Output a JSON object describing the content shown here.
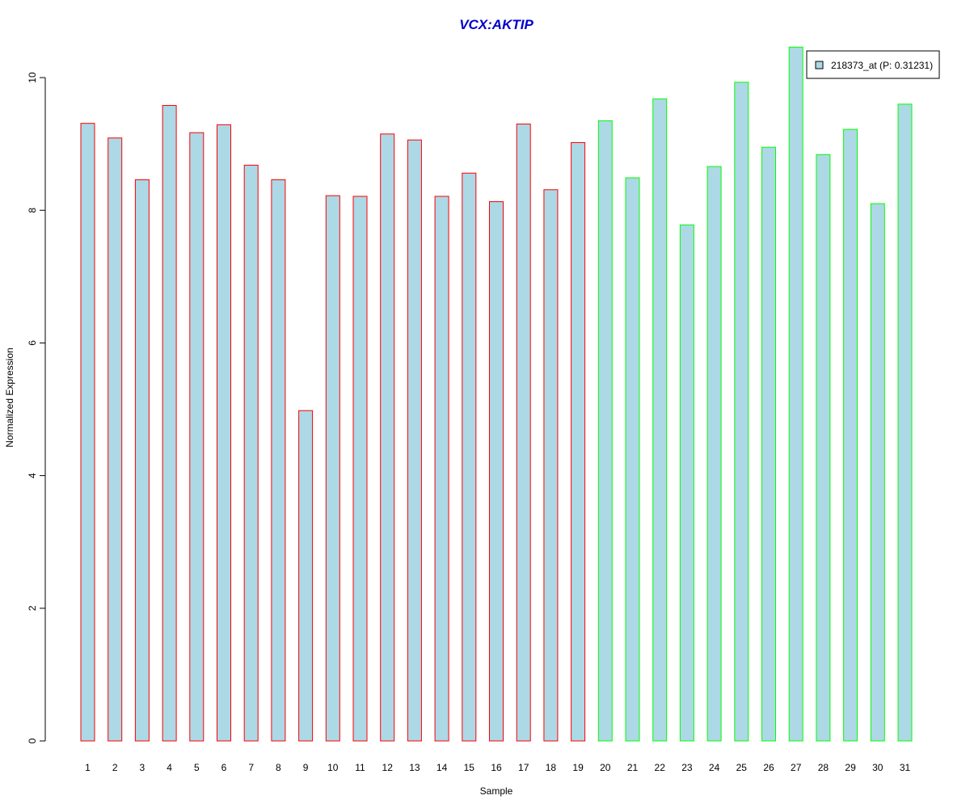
{
  "chart_data": {
    "type": "bar",
    "title": "VCX:AKTIP",
    "xlabel": "Sample",
    "ylabel": "Normalized Expression",
    "ylim": [
      0,
      10.5
    ],
    "yticks": [
      0,
      2,
      4,
      6,
      8,
      10
    ],
    "categories": [
      "1",
      "2",
      "3",
      "4",
      "5",
      "6",
      "7",
      "8",
      "9",
      "10",
      "11",
      "12",
      "13",
      "14",
      "15",
      "16",
      "17",
      "18",
      "19",
      "20",
      "21",
      "22",
      "23",
      "24",
      "25",
      "26",
      "27",
      "28",
      "29",
      "30",
      "31"
    ],
    "series": [
      {
        "name": "218373_at (P: 0.31231)",
        "values": [
          9.31,
          9.09,
          8.46,
          9.58,
          9.17,
          9.29,
          8.68,
          8.46,
          4.98,
          8.22,
          8.21,
          9.15,
          9.06,
          8.21,
          8.56,
          8.13,
          9.3,
          8.31,
          9.02,
          9.35,
          8.49,
          9.68,
          7.78,
          8.66,
          9.93,
          8.95,
          10.46,
          8.84,
          9.22,
          8.1,
          9.6
        ]
      }
    ],
    "groups": [
      {
        "from": 1,
        "to": 19,
        "border_color": "#ff0000"
      },
      {
        "from": 20,
        "to": 31,
        "border_color": "#00ff00"
      }
    ],
    "legend": {
      "label": "218373_at (P: 0.31231)",
      "placement": "top-right"
    },
    "colors": {
      "bar_fill": "#add8e6",
      "title": "#0000cd"
    },
    "grid": false
  }
}
